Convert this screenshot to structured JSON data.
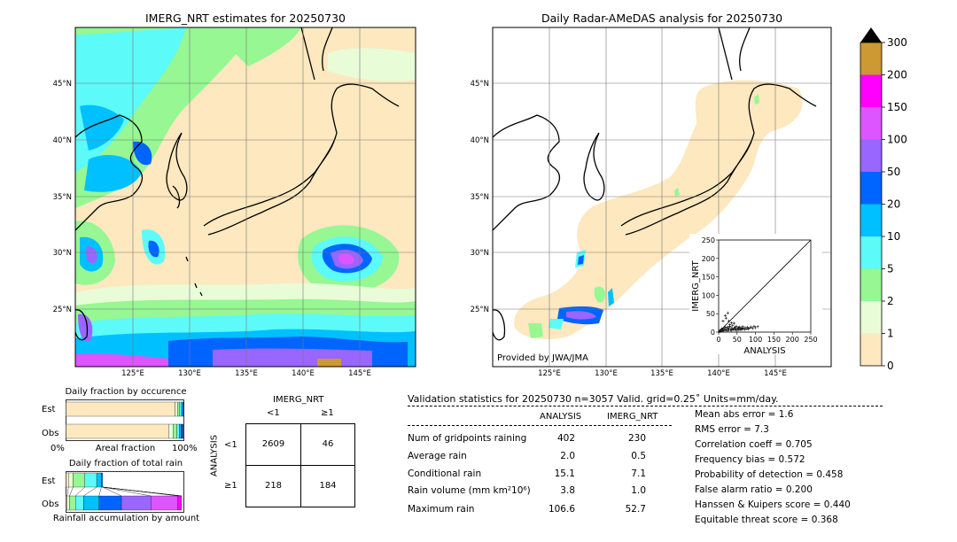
{
  "left_map": {
    "title": "IMERG_NRT estimates for 20250730",
    "lat_labels": [
      "45°N",
      "40°N",
      "35°N",
      "30°N",
      "25°N"
    ],
    "lon_labels": [
      "125°E",
      "130°E",
      "135°E",
      "140°E",
      "145°E"
    ]
  },
  "right_map": {
    "title": "Daily Radar-AMeDAS analysis for 20250730",
    "lat_labels": [
      "45°N",
      "40°N",
      "35°N",
      "30°N",
      "25°N"
    ],
    "lon_labels": [
      "125°E",
      "130°E",
      "135°E",
      "140°E",
      "145°E"
    ],
    "credit": "Provided by JWA/JMA"
  },
  "colorbar": {
    "ticks": [
      "0",
      "1",
      "2",
      "5",
      "10",
      "20",
      "50",
      "100",
      "150",
      "200",
      "300"
    ],
    "colors": [
      "#fde8bf",
      "#e8fcd8",
      "#96f793",
      "#5cfaf8",
      "#00c0ff",
      "#0064ff",
      "#9966ff",
      "#dd55ff",
      "#ff00ff",
      "#cc9933",
      "#000000"
    ]
  },
  "fraction_occurrence": {
    "title": "Daily fraction by occurence",
    "row_labels": [
      "Est",
      "Obs"
    ],
    "x_left": "0%",
    "x_mid": "Areal fraction",
    "x_right": "100%"
  },
  "fraction_rain": {
    "title": "Daily fraction of total rain",
    "row_labels": [
      "Est",
      "Obs"
    ],
    "xlabel": "Rainfall accumulation by amount"
  },
  "contingency": {
    "col_title": "IMERG_NRT",
    "col_labels": [
      "<1",
      "≥1"
    ],
    "row_title": "ANALYSIS",
    "row_labels": [
      "<1",
      "≥1"
    ],
    "cells": [
      [
        "2609",
        "46"
      ],
      [
        "218",
        "184"
      ]
    ]
  },
  "validation": {
    "header": "Validation statistics for 20250730  n=3057 Valid. grid=0.25˚ Units=mm/day.",
    "col_analysis": "ANALYSIS",
    "col_imerg": "IMERG_NRT",
    "rows": [
      {
        "label": "Num of gridpoints raining",
        "analysis": "402",
        "imerg": "230"
      },
      {
        "label": "Average rain",
        "analysis": "2.0",
        "imerg": "0.5"
      },
      {
        "label": "Conditional rain",
        "analysis": "15.1",
        "imerg": "7.1"
      },
      {
        "label": "Rain volume (mm km²10⁶)",
        "analysis": "3.8",
        "imerg": "1.0"
      },
      {
        "label": "Maximum rain",
        "analysis": "106.6",
        "imerg": "52.7"
      }
    ],
    "scores": [
      "Mean abs error =    1.6",
      "RMS error =    7.3",
      "Correlation coeff =  0.705",
      "Frequency bias =  0.572",
      "Probability of detection =  0.458",
      "False alarm ratio =  0.200",
      "Hanssen & Kuipers score =  0.440",
      "Equitable threat score =  0.368"
    ]
  },
  "chart_data": [
    {
      "type": "scatter",
      "title": "",
      "xlabel": "ANALYSIS",
      "ylabel": "IMERG_NRT",
      "xlim": [
        0,
        250
      ],
      "ylim": [
        0,
        250
      ],
      "xticks": [
        "0",
        "50",
        "100",
        "150",
        "200",
        "250"
      ],
      "yticks": [
        "0",
        "50",
        "100",
        "150",
        "200",
        "250"
      ],
      "one_to_one_line": true,
      "points": [
        [
          2,
          1
        ],
        [
          4,
          3
        ],
        [
          5,
          6
        ],
        [
          7,
          2
        ],
        [
          8,
          9
        ],
        [
          10,
          4
        ],
        [
          12,
          8
        ],
        [
          14,
          3
        ],
        [
          15,
          10
        ],
        [
          17,
          6
        ],
        [
          18,
          13
        ],
        [
          20,
          5
        ],
        [
          22,
          9
        ],
        [
          24,
          14
        ],
        [
          25,
          4
        ],
        [
          27,
          11
        ],
        [
          28,
          7
        ],
        [
          30,
          16
        ],
        [
          32,
          6
        ],
        [
          34,
          12
        ],
        [
          35,
          5
        ],
        [
          37,
          9
        ],
        [
          38,
          18
        ],
        [
          40,
          7
        ],
        [
          42,
          11
        ],
        [
          44,
          6
        ],
        [
          45,
          13
        ],
        [
          47,
          8
        ],
        [
          48,
          16
        ],
        [
          50,
          5
        ],
        [
          52,
          10
        ],
        [
          54,
          12
        ],
        [
          55,
          7
        ],
        [
          57,
          14
        ],
        [
          58,
          9
        ],
        [
          60,
          6
        ],
        [
          62,
          11
        ],
        [
          64,
          8
        ],
        [
          65,
          15
        ],
        [
          67,
          10
        ],
        [
          70,
          7
        ],
        [
          72,
          12
        ],
        [
          75,
          9
        ],
        [
          78,
          13
        ],
        [
          80,
          8
        ],
        [
          84,
          11
        ],
        [
          88,
          14
        ],
        [
          92,
          10
        ],
        [
          96,
          16
        ],
        [
          100,
          12
        ],
        [
          106,
          15
        ],
        [
          12,
          30
        ],
        [
          20,
          38
        ],
        [
          28,
          30
        ],
        [
          35,
          25
        ],
        [
          18,
          45
        ],
        [
          30,
          20
        ],
        [
          42,
          24
        ],
        [
          25,
          52
        ]
      ]
    },
    {
      "type": "bar",
      "title": "Daily fraction by occurence",
      "orientation": "horizontal-stacked",
      "categories": [
        "Est",
        "Obs"
      ],
      "bins": [
        "0",
        "1",
        "2",
        "5",
        "10",
        "20",
        "50",
        "100",
        "150",
        "200",
        "300"
      ],
      "series": [
        {
          "row": "Est",
          "values": [
            0.925,
            0.02,
            0.02,
            0.015,
            0.01,
            0.007,
            0.003,
            0,
            0,
            0,
            0
          ]
        },
        {
          "row": "Obs",
          "values": [
            0.87,
            0.04,
            0.03,
            0.02,
            0.015,
            0.012,
            0.008,
            0.004,
            0,
            0,
            0
          ]
        }
      ]
    },
    {
      "type": "bar",
      "title": "Daily fraction of total rain",
      "orientation": "horizontal-stacked",
      "categories": [
        "Est",
        "Obs"
      ],
      "bins": [
        "0",
        "1",
        "2",
        "5",
        "10",
        "20",
        "50",
        "100",
        "150",
        "200",
        "300"
      ],
      "series": [
        {
          "row": "Est",
          "values": [
            0.02,
            0.04,
            0.1,
            0.1,
            0.04,
            0.01,
            0,
            0,
            0,
            0,
            0
          ]
        },
        {
          "row": "Obs",
          "values": [
            0.01,
            0.02,
            0.05,
            0.07,
            0.13,
            0.19,
            0.25,
            0.23,
            0.03,
            0,
            0
          ]
        }
      ]
    }
  ]
}
